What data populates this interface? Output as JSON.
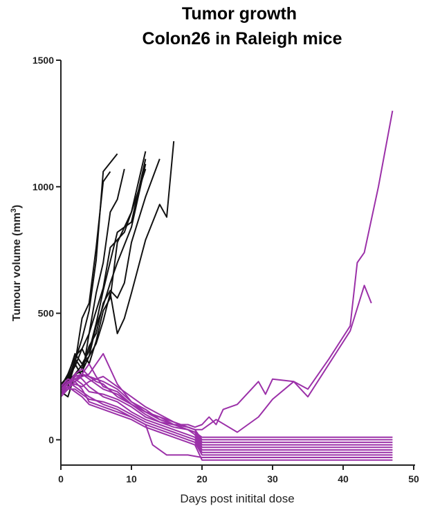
{
  "chart_data": {
    "type": "line",
    "title": [
      "Tumor growth",
      "Colon26 in Raleigh mice"
    ],
    "xlabel": "Days post initital dose",
    "ylabel": "Tumour volume (mm",
    "ylabel_superscript": "3",
    "ylabel_close": ")",
    "xlim": [
      0,
      50
    ],
    "ylim": [
      -100,
      1500
    ],
    "xticks": [
      "0",
      "10",
      "20",
      "30",
      "40",
      "50"
    ],
    "yticks": [
      "0",
      "500",
      "1000",
      "1500"
    ],
    "grid": false,
    "legend": "none",
    "colors": {
      "control": "#111111",
      "treated": "#9b30a8"
    },
    "series": [
      {
        "group": "control",
        "x": [
          0,
          1,
          2,
          3,
          4,
          5,
          6,
          7
        ],
        "y": [
          190,
          230,
          300,
          480,
          540,
          760,
          1020,
          1060
        ]
      },
      {
        "group": "control",
        "x": [
          0,
          1,
          2,
          3,
          4,
          5,
          6,
          8
        ],
        "y": [
          200,
          240,
          310,
          400,
          510,
          710,
          1060,
          1130
        ]
      },
      {
        "group": "control",
        "x": [
          0,
          1,
          2,
          3,
          4,
          5,
          6,
          7,
          8,
          9
        ],
        "y": [
          210,
          260,
          330,
          360,
          420,
          580,
          700,
          900,
          950,
          1070
        ]
      },
      {
        "group": "control",
        "x": [
          0,
          1,
          2,
          3,
          4,
          6,
          7,
          9,
          10,
          12
        ],
        "y": [
          180,
          210,
          300,
          250,
          420,
          600,
          760,
          820,
          900,
          1140
        ]
      },
      {
        "group": "control",
        "x": [
          0,
          1,
          2,
          3,
          4,
          5,
          6,
          8,
          10,
          12
        ],
        "y": [
          220,
          250,
          340,
          300,
          350,
          460,
          590,
          820,
          860,
          1110
        ]
      },
      {
        "group": "control",
        "x": [
          0,
          2,
          3,
          4,
          5,
          6,
          7,
          8,
          10,
          12
        ],
        "y": [
          200,
          290,
          360,
          300,
          390,
          510,
          560,
          780,
          900,
          1070
        ]
      },
      {
        "group": "control",
        "x": [
          0,
          1,
          2,
          3,
          4,
          5,
          6,
          7,
          8,
          10,
          12
        ],
        "y": [
          190,
          170,
          260,
          270,
          330,
          450,
          530,
          620,
          700,
          840,
          1090
        ]
      },
      {
        "group": "control",
        "x": [
          0,
          1,
          2,
          3,
          4,
          5,
          6,
          7,
          8,
          9,
          10,
          12,
          14
        ],
        "y": [
          210,
          230,
          320,
          280,
          370,
          420,
          540,
          590,
          560,
          620,
          780,
          960,
          1110
        ]
      },
      {
        "group": "control",
        "x": [
          0,
          2,
          4,
          5,
          6,
          7,
          8,
          9,
          10,
          12,
          14,
          15,
          16
        ],
        "y": [
          200,
          260,
          330,
          380,
          470,
          580,
          420,
          480,
          580,
          790,
          930,
          880,
          1180
        ]
      },
      {
        "group": "treated",
        "x": [
          0,
          1,
          2,
          3,
          4,
          5,
          6,
          8,
          10,
          12,
          14,
          16,
          18,
          19,
          20,
          21,
          22,
          23,
          25,
          28,
          29,
          30,
          33,
          35,
          38,
          41,
          42,
          43,
          45,
          47
        ],
        "y": [
          190,
          220,
          240,
          260,
          250,
          230,
          220,
          170,
          140,
          110,
          90,
          60,
          60,
          50,
          60,
          90,
          60,
          120,
          140,
          230,
          180,
          240,
          230,
          200,
          320,
          450,
          700,
          740,
          1000,
          1300
        ]
      },
      {
        "group": "treated",
        "x": [
          0,
          1,
          2,
          3,
          4,
          5,
          6,
          8,
          10,
          12,
          14,
          16,
          18,
          19,
          20,
          22,
          25,
          28,
          30,
          33,
          35,
          38,
          41,
          43,
          44
        ],
        "y": [
          180,
          200,
          230,
          260,
          300,
          250,
          210,
          190,
          140,
          100,
          70,
          60,
          50,
          40,
          40,
          80,
          30,
          90,
          160,
          230,
          170,
          300,
          430,
          610,
          540
        ]
      },
      {
        "group": "treated",
        "x": [
          0,
          1,
          2,
          3,
          4,
          6,
          8,
          10,
          12,
          14,
          16,
          18,
          19,
          20,
          47
        ],
        "y": [
          200,
          220,
          260,
          280,
          250,
          230,
          200,
          150,
          120,
          80,
          60,
          40,
          30,
          10,
          10
        ]
      },
      {
        "group": "treated",
        "x": [
          0,
          1,
          2,
          3,
          4,
          6,
          8,
          10,
          12,
          14,
          16,
          18,
          19,
          20,
          47
        ],
        "y": [
          210,
          240,
          230,
          250,
          260,
          340,
          220,
          150,
          110,
          90,
          70,
          50,
          40,
          0,
          0
        ]
      },
      {
        "group": "treated",
        "x": [
          0,
          1,
          2,
          3,
          4,
          6,
          8,
          10,
          12,
          14,
          16,
          18,
          19,
          20,
          47
        ],
        "y": [
          190,
          210,
          220,
          210,
          230,
          250,
          210,
          170,
          130,
          100,
          70,
          50,
          40,
          -10,
          -10
        ]
      },
      {
        "group": "treated",
        "x": [
          0,
          1,
          2,
          3,
          4,
          6,
          8,
          10,
          12,
          14,
          16,
          18,
          19,
          20,
          47
        ],
        "y": [
          180,
          200,
          250,
          260,
          240,
          200,
          180,
          140,
          110,
          80,
          60,
          40,
          30,
          -20,
          -20
        ]
      },
      {
        "group": "treated",
        "x": [
          0,
          1,
          2,
          3,
          4,
          6,
          8,
          10,
          12,
          14,
          16,
          18,
          19,
          20,
          47
        ],
        "y": [
          200,
          230,
          240,
          220,
          190,
          180,
          160,
          130,
          90,
          70,
          50,
          40,
          20,
          -30,
          -30
        ]
      },
      {
        "group": "treated",
        "x": [
          0,
          1,
          2,
          3,
          4,
          6,
          8,
          10,
          12,
          14,
          16,
          18,
          19,
          20,
          47
        ],
        "y": [
          190,
          220,
          260,
          240,
          210,
          170,
          150,
          110,
          80,
          60,
          40,
          20,
          10,
          -40,
          -40
        ]
      },
      {
        "group": "treated",
        "x": [
          0,
          1,
          2,
          3,
          4,
          6,
          8,
          10,
          12,
          14,
          16,
          18,
          19,
          20,
          47
        ],
        "y": [
          170,
          200,
          200,
          180,
          160,
          150,
          130,
          100,
          70,
          50,
          30,
          10,
          0,
          -50,
          -50
        ]
      },
      {
        "group": "treated",
        "x": [
          0,
          1,
          2,
          3,
          4,
          6,
          8,
          10,
          12,
          14,
          16,
          18,
          19,
          20,
          47
        ],
        "y": [
          200,
          230,
          210,
          190,
          170,
          140,
          120,
          90,
          60,
          40,
          20,
          0,
          -10,
          -60,
          -60
        ]
      },
      {
        "group": "treated",
        "x": [
          0,
          1,
          2,
          3,
          4,
          6,
          8,
          10,
          12,
          13,
          15,
          18,
          20,
          47
        ],
        "y": [
          210,
          240,
          230,
          200,
          150,
          130,
          110,
          90,
          60,
          -20,
          -60,
          -60,
          -70,
          -70
        ]
      },
      {
        "group": "treated",
        "x": [
          0,
          1,
          2,
          3,
          4,
          6,
          8,
          10,
          12,
          14,
          16,
          18,
          19,
          20,
          47
        ],
        "y": [
          180,
          210,
          190,
          170,
          140,
          120,
          100,
          80,
          50,
          30,
          10,
          -10,
          -20,
          -80,
          -80
        ]
      }
    ]
  }
}
